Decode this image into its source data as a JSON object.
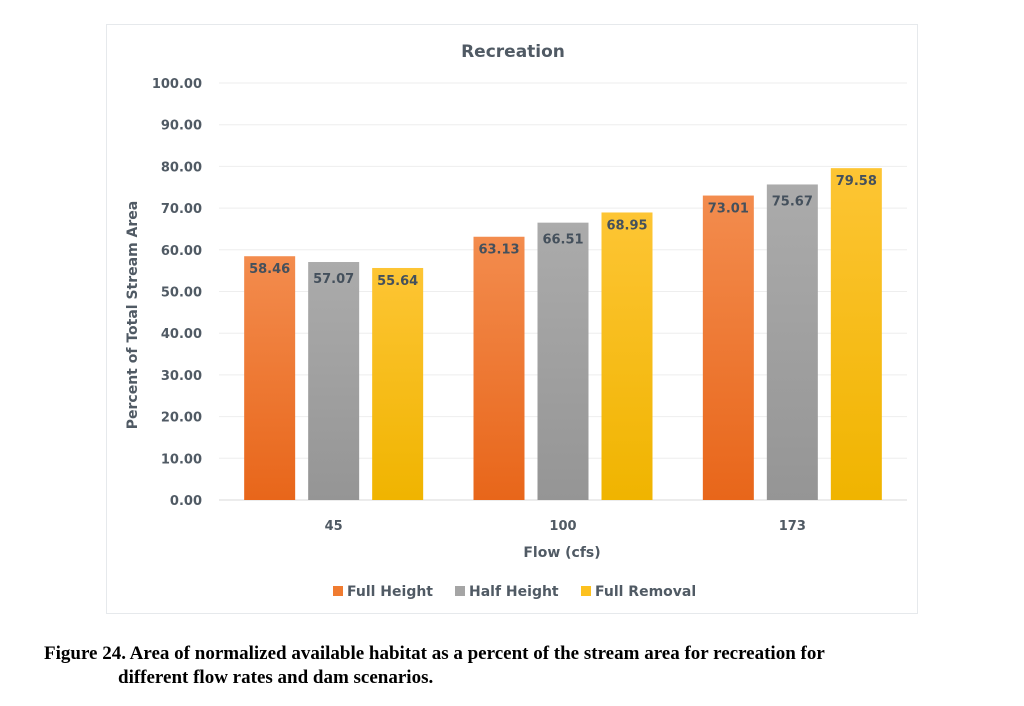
{
  "chart_data": {
    "type": "bar",
    "title": "Recreation",
    "xlabel": "Flow (cfs)",
    "ylabel": "Percent of Total Stream Area",
    "categories": [
      "45",
      "100",
      "173"
    ],
    "series": [
      {
        "name": "Full Height",
        "values": [
          58.46,
          63.13,
          73.01
        ],
        "color": "#f07b30"
      },
      {
        "name": "Half Height",
        "values": [
          57.07,
          66.51,
          75.67
        ],
        "color": "#a5a5a5"
      },
      {
        "name": "Full Removal",
        "values": [
          55.64,
          68.95,
          79.58
        ],
        "color": "#fdc11f"
      }
    ],
    "data_labels": [
      [
        "58.46",
        "57.07",
        "55.64"
      ],
      [
        "63.13",
        "66.51",
        "68.95"
      ],
      [
        "73.01",
        "75.67",
        "79.58"
      ]
    ],
    "ylim": [
      0,
      100
    ],
    "yticks": [
      "0.00",
      "10.00",
      "20.00",
      "30.00",
      "40.00",
      "50.00",
      "60.00",
      "70.00",
      "80.00",
      "90.00",
      "100.00"
    ],
    "grid": true,
    "legend_position": "bottom"
  },
  "caption": {
    "line1": "Figure 24.  Area of normalized available habitat as a percent of the stream area for recreation for",
    "line2": "different flow rates and dam scenarios."
  }
}
